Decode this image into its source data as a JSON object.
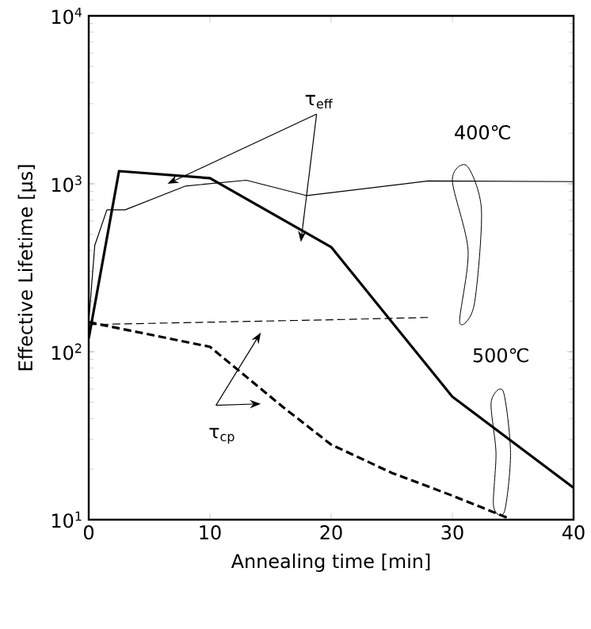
{
  "chart_data": {
    "type": "line",
    "xlabel": "Annealing time [min]",
    "ylabel": "Effective Lifetime [μs]",
    "log": "y",
    "xlim": [
      0,
      40
    ],
    "ylim": [
      10,
      10000
    ],
    "xticks": [
      0,
      10,
      20,
      30,
      40
    ],
    "yticks": [
      {
        "value": 10,
        "label": "10$^{1}$"
      },
      {
        "value": 100,
        "label": "10$^{2}$"
      },
      {
        "value": 1000,
        "label": "10$^{3}$"
      },
      {
        "value": 10000,
        "label": "10$^{4}$"
      }
    ],
    "series": [
      {
        "color": "#000000",
        "line_style": "solid",
        "x": [
          0,
          0.5,
          1.5,
          3,
          8,
          13,
          18,
          28,
          40
        ],
        "values": [
          150,
          430,
          700,
          700,
          970,
          1050,
          850,
          1040,
          1030
        ]
      },
      {
        "color": "#000000",
        "line_style": "solid",
        "x": [
          0,
          2.5,
          10,
          20,
          30,
          40
        ],
        "values": [
          120,
          1190,
          1080,
          420,
          54,
          15.5
        ]
      },
      {
        "color": "#000000",
        "line_style": "dashed",
        "x": [
          0,
          10,
          20,
          28
        ],
        "values": [
          145,
          150,
          155,
          160
        ]
      },
      {
        "color": "#000000",
        "line_style": "dashed",
        "x": [
          0,
          10,
          16,
          20,
          25,
          30,
          34.5
        ],
        "values": [
          150,
          107,
          47,
          28,
          19,
          13.9,
          10.3
        ]
      }
    ],
    "annotations": [
      "τ$_{eff}$",
      "400℃",
      "500℃",
      "τ$_{cp}$"
    ]
  }
}
